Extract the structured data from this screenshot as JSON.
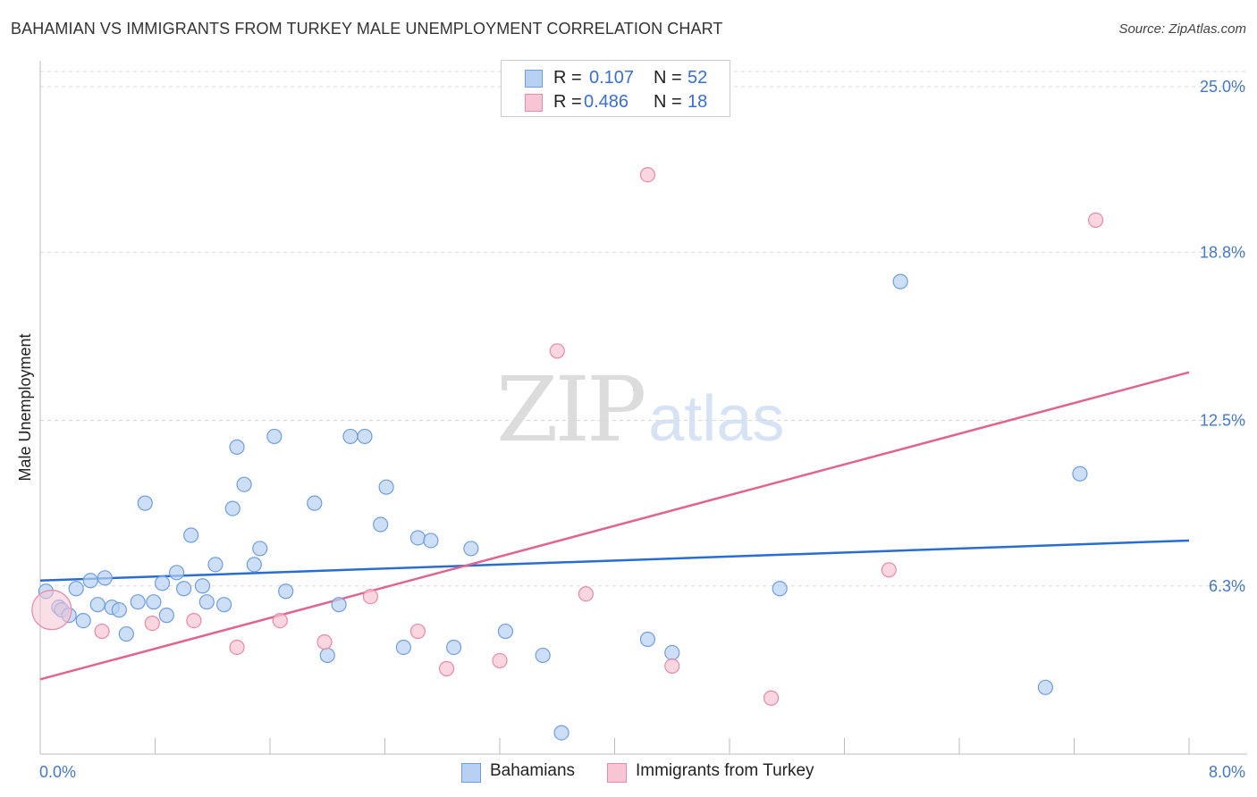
{
  "title": "BAHAMIAN VS IMMIGRANTS FROM TURKEY MALE UNEMPLOYMENT CORRELATION CHART",
  "source": "Source: ZipAtlas.com",
  "watermark": {
    "part1": "ZIP",
    "part2": "atlas"
  },
  "legend": {
    "rows": [
      {
        "r_label": "R =",
        "r_value": "0.107",
        "n_label": "N =",
        "n_value": "52",
        "color": "#b8d1f3",
        "border": "#6f9ee0"
      },
      {
        "r_label": "R =",
        "r_value": "0.486",
        "n_label": "N =",
        "n_value": "18",
        "color": "#f8c5d4",
        "border": "#e88aa8"
      }
    ]
  },
  "bottom_legend": [
    {
      "label": "Bahamians",
      "color": "#b8d1f3",
      "border": "#6f9ee0"
    },
    {
      "label": "Immigrants from Turkey",
      "color": "#f8c5d4",
      "border": "#e88aa8"
    }
  ],
  "chart_data": {
    "type": "scatter",
    "title": "BAHAMIAN VS IMMIGRANTS FROM TURKEY MALE UNEMPLOYMENT CORRELATION CHART",
    "xlabel": "",
    "ylabel": "Male Unemployment",
    "xlim": [
      0,
      8.0
    ],
    "ylim": [
      0,
      25.0
    ],
    "x_tick_labels": [
      "0.0%",
      "8.0%"
    ],
    "y_ticks": [
      6.3,
      12.5,
      18.8,
      25.0
    ],
    "y_tick_labels": [
      "6.3%",
      "12.5%",
      "18.8%",
      "25.0%"
    ],
    "series": [
      {
        "name": "Bahamians",
        "color": "#6f9ee0",
        "fill": "#b8d1f3",
        "trend": {
          "x0": 0.0,
          "y0": 6.5,
          "x1": 8.0,
          "y1": 8.0,
          "color": "#2a6dd0"
        },
        "points": [
          [
            0.04,
            6.1
          ],
          [
            0.13,
            5.5
          ],
          [
            0.15,
            5.4
          ],
          [
            0.2,
            5.2
          ],
          [
            0.25,
            6.2
          ],
          [
            0.3,
            5.0
          ],
          [
            0.35,
            6.5
          ],
          [
            0.4,
            5.6
          ],
          [
            0.45,
            6.6
          ],
          [
            0.5,
            5.5
          ],
          [
            0.55,
            5.4
          ],
          [
            0.6,
            4.5
          ],
          [
            0.68,
            5.7
          ],
          [
            0.73,
            9.4
          ],
          [
            0.79,
            5.7
          ],
          [
            0.85,
            6.4
          ],
          [
            0.88,
            5.2
          ],
          [
            0.95,
            6.8
          ],
          [
            1.0,
            6.2
          ],
          [
            1.05,
            8.2
          ],
          [
            1.13,
            6.3
          ],
          [
            1.16,
            5.7
          ],
          [
            1.22,
            7.1
          ],
          [
            1.28,
            5.6
          ],
          [
            1.34,
            9.2
          ],
          [
            1.37,
            11.5
          ],
          [
            1.42,
            10.1
          ],
          [
            1.49,
            7.1
          ],
          [
            1.53,
            7.7
          ],
          [
            1.63,
            11.9
          ],
          [
            1.71,
            6.1
          ],
          [
            1.91,
            9.4
          ],
          [
            2.0,
            3.7
          ],
          [
            2.08,
            5.6
          ],
          [
            2.16,
            11.9
          ],
          [
            2.26,
            11.9
          ],
          [
            2.37,
            8.6
          ],
          [
            2.41,
            10.0
          ],
          [
            2.53,
            4.0
          ],
          [
            2.63,
            8.1
          ],
          [
            2.72,
            8.0
          ],
          [
            2.88,
            4.0
          ],
          [
            3.0,
            7.7
          ],
          [
            3.24,
            4.6
          ],
          [
            3.5,
            3.7
          ],
          [
            3.63,
            0.8
          ],
          [
            4.23,
            4.3
          ],
          [
            4.4,
            3.8
          ],
          [
            5.15,
            6.2
          ],
          [
            5.99,
            17.7
          ],
          [
            7.0,
            2.5
          ],
          [
            7.24,
            10.5
          ]
        ]
      },
      {
        "name": "Immigrants from Turkey",
        "color": "#e88aa8",
        "fill": "#f8c5d4",
        "trend": {
          "x0": 0.0,
          "y0": 2.8,
          "x1": 8.0,
          "y1": 14.3,
          "color": "#e0648f"
        },
        "points": [
          [
            0.08,
            5.4
          ],
          [
            0.43,
            4.6
          ],
          [
            0.78,
            4.9
          ],
          [
            1.07,
            5.0
          ],
          [
            1.37,
            4.0
          ],
          [
            1.67,
            5.0
          ],
          [
            1.98,
            4.2
          ],
          [
            2.3,
            5.9
          ],
          [
            2.63,
            4.6
          ],
          [
            2.83,
            3.2
          ],
          [
            3.2,
            3.5
          ],
          [
            3.6,
            15.1
          ],
          [
            3.8,
            6.0
          ],
          [
            4.23,
            21.7
          ],
          [
            4.4,
            3.3
          ],
          [
            5.09,
            2.1
          ],
          [
            5.91,
            6.9
          ],
          [
            7.35,
            20.0
          ]
        ]
      }
    ]
  }
}
